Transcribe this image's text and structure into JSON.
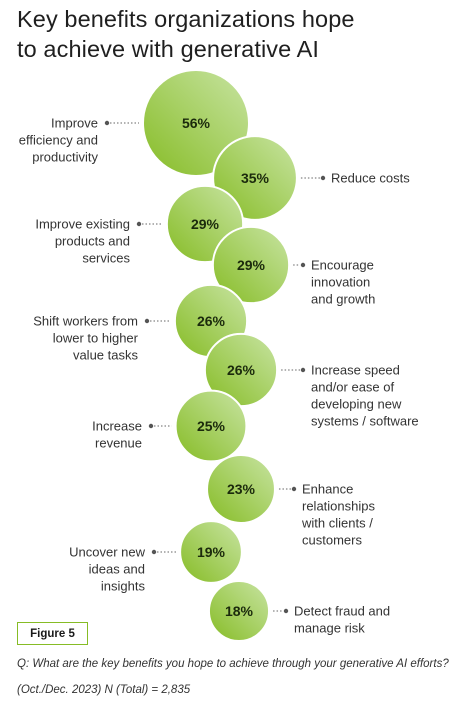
{
  "title_lines": [
    "Key benefits organizations hope",
    "to achieve with generative AI"
  ],
  "figure_label": "Figure 5",
  "footnote": {
    "question": "Q: What are the key benefits you hope to achieve through your generative AI efforts?",
    "sample": "(Oct./Dec. 2023) N (Total) = 2,835"
  },
  "colors": {
    "bubble_light": "#c8e4a3",
    "bubble_dark": "#86bc25",
    "leader": "#666666",
    "accent": "#86bc25"
  },
  "chart_data": {
    "type": "bubble",
    "title": "Key benefits organizations hope to achieve with generative AI",
    "unit": "%",
    "items": [
      {
        "label": "Improve efficiency and productivity",
        "value": 56,
        "value_label": "56%",
        "label_lines": [
          "Improve",
          "efficiency and",
          "productivity"
        ],
        "side": "left"
      },
      {
        "label": "Reduce costs",
        "value": 35,
        "value_label": "35%",
        "label_lines": [
          "Reduce costs"
        ],
        "side": "right"
      },
      {
        "label": "Improve existing products and services",
        "value": 29,
        "value_label": "29%",
        "label_lines": [
          "Improve existing",
          "products and",
          "services"
        ],
        "side": "left"
      },
      {
        "label": "Encourage innovation and growth",
        "value": 29,
        "value_label": "29%",
        "label_lines": [
          "Encourage",
          "innovation",
          "and growth"
        ],
        "side": "right"
      },
      {
        "label": "Shift workers from lower to higher value tasks",
        "value": 26,
        "value_label": "26%",
        "label_lines": [
          "Shift workers from",
          "lower to higher",
          "value tasks"
        ],
        "side": "left"
      },
      {
        "label": "Increase speed and/or ease of developing new systems / software",
        "value": 26,
        "value_label": "26%",
        "label_lines": [
          "Increase speed",
          "and/or ease of",
          "developing new",
          "systems / software"
        ],
        "side": "right"
      },
      {
        "label": "Increase revenue",
        "value": 25,
        "value_label": "25%",
        "label_lines": [
          "Increase",
          "revenue"
        ],
        "side": "left"
      },
      {
        "label": "Enhance relationships with clients / customers",
        "value": 23,
        "value_label": "23%",
        "label_lines": [
          "Enhance",
          "relationships",
          "with clients /",
          "customers"
        ],
        "side": "right"
      },
      {
        "label": "Uncover new ideas and insights",
        "value": 19,
        "value_label": "19%",
        "label_lines": [
          "Uncover new",
          "ideas and",
          "insights"
        ],
        "side": "left"
      },
      {
        "label": "Detect fraud and manage risk",
        "value": 18,
        "value_label": "18%",
        "label_lines": [
          "Detect fraud and",
          "manage risk"
        ],
        "side": "right"
      }
    ]
  }
}
